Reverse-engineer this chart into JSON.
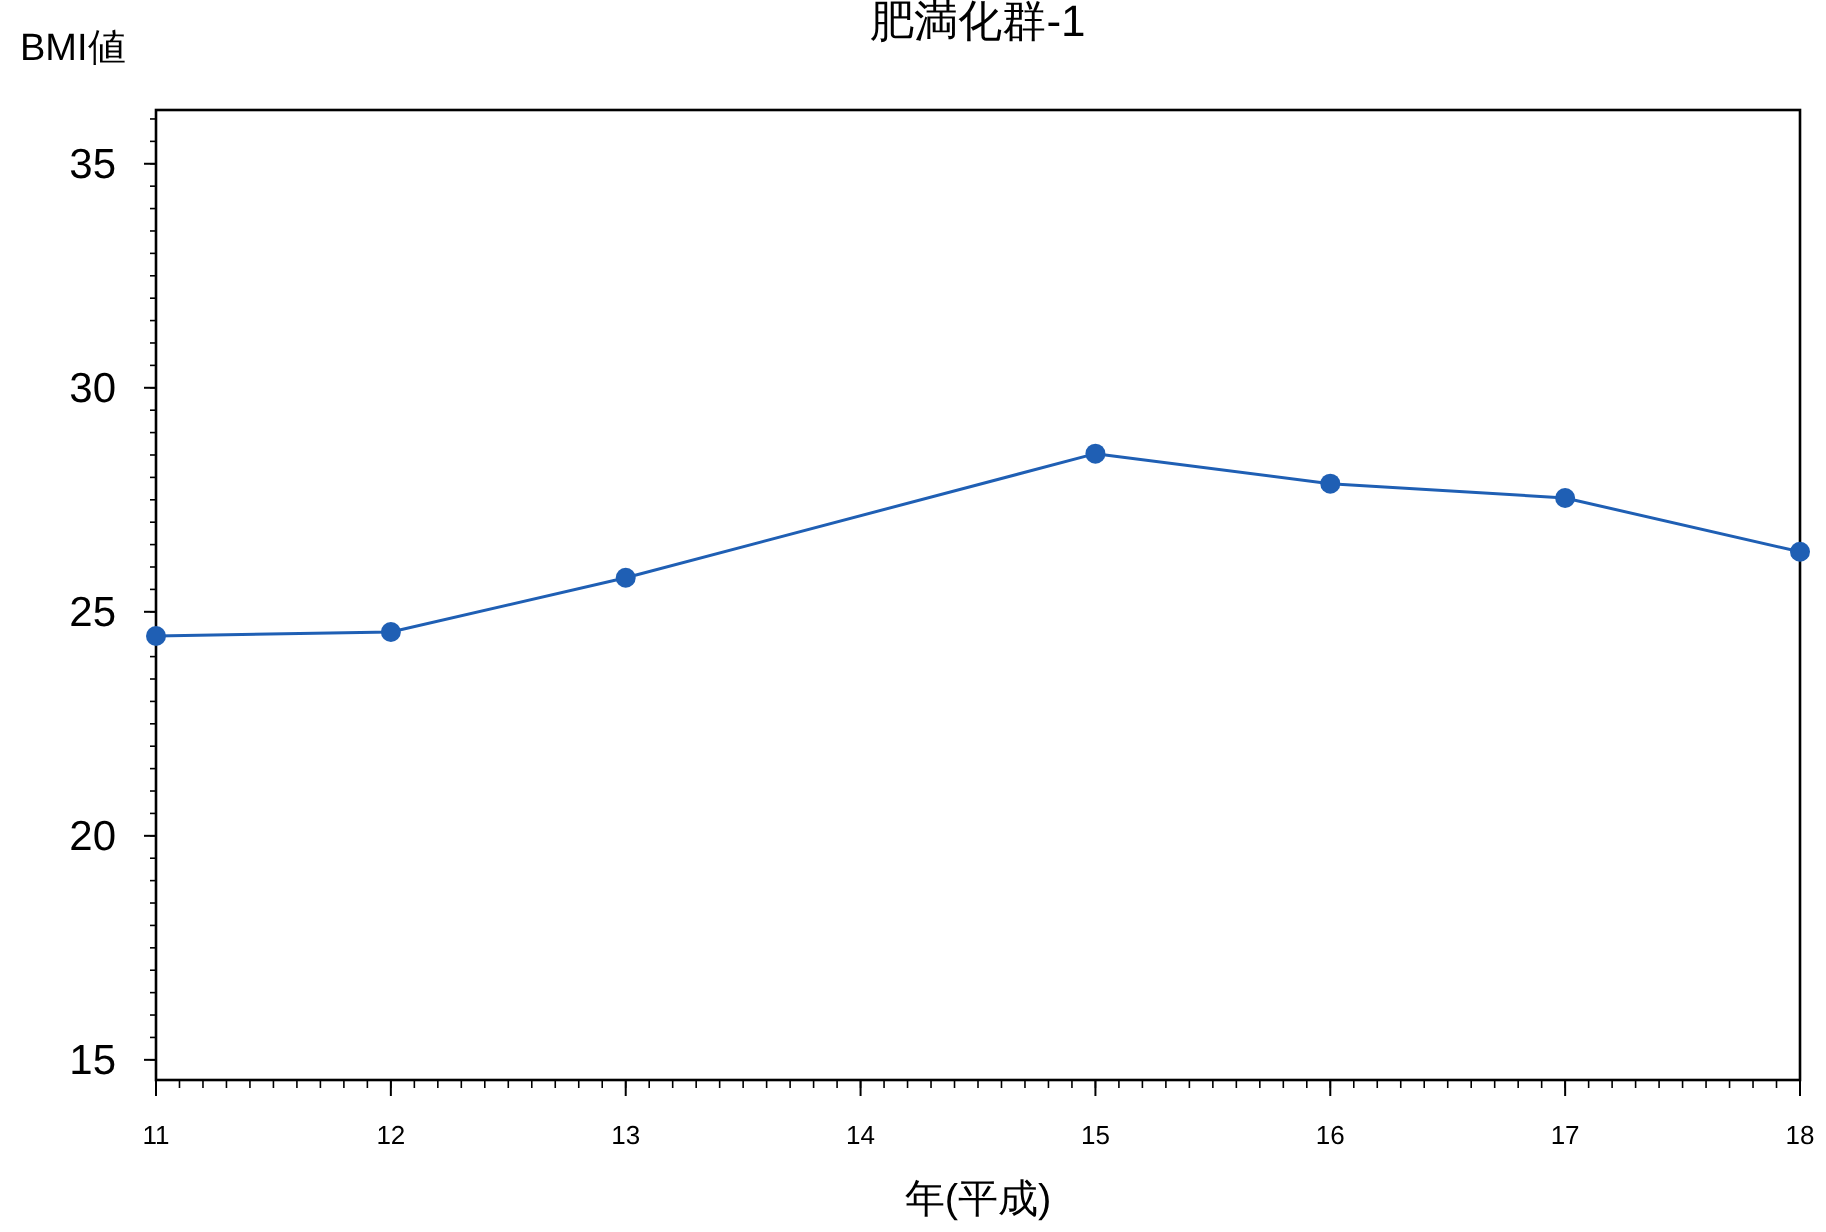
{
  "chart_data": {
    "type": "line",
    "title": "肥満化群-1",
    "ylabel": "BMI値",
    "xlabel": "年(平成)",
    "x": [
      11,
      12,
      13,
      15,
      16,
      17,
      18
    ],
    "series": [
      {
        "color": "#1f5fb4",
        "values": [
          24.46,
          24.55,
          25.76,
          28.53,
          27.86,
          27.54,
          26.34
        ]
      }
    ],
    "xlim": [
      11,
      18
    ],
    "xticks": [
      11,
      12,
      13,
      14,
      15,
      16,
      17,
      18
    ],
    "ylim": [
      14.55,
      36.2
    ],
    "yticks": [
      15,
      20,
      25,
      30,
      35
    ],
    "marker": "circle",
    "line_style": "solid"
  }
}
